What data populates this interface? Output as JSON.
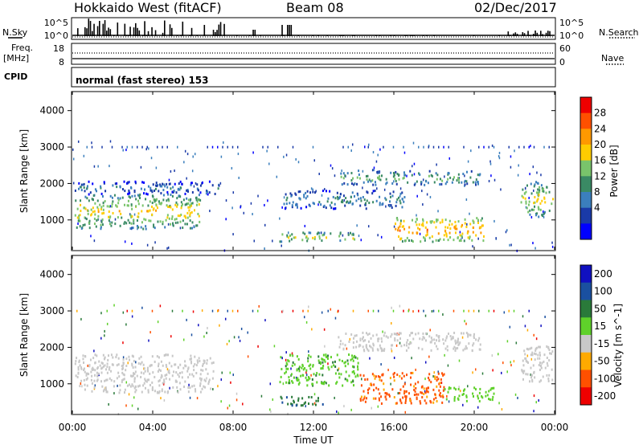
{
  "header": {
    "station": "Hokkaido West (fitACF)",
    "beam": "Beam 08",
    "date": "02/Dec/2017"
  },
  "params": {
    "nsky_label": "N.Sky",
    "nsearch_label": "N.Search",
    "freq_label": "Freq.",
    "freq_unit": "[MHz]",
    "nave_label": "Nave",
    "cpid_label": "CPID",
    "cpid_text": "normal (fast stereo) 153",
    "nsky_ticks": [
      "10^5",
      "10^0"
    ],
    "nsearch_ticks": [
      "10^5",
      "10^0"
    ],
    "freq_ticks": [
      "18",
      "8"
    ],
    "nave_ticks": [
      "60",
      "0"
    ]
  },
  "colors": {
    "power": [
      "#0000ff",
      "#1a3aa8",
      "#3b7fbd",
      "#3a8a64",
      "#79c46b",
      "#ffcc00",
      "#ff9900",
      "#ff5000",
      "#ee0000"
    ],
    "velocity": [
      "#ee0000",
      "#ff5000",
      "#ffaa00",
      "#c8c8c8",
      "#5fd12a",
      "#2a7a3a",
      "#1a50a0",
      "#1010c0"
    ]
  },
  "chart_data": [
    {
      "type": "heatmap",
      "panel": "power",
      "ylabel": "Slant Range [km]",
      "xlabel": "",
      "ylim": [
        180,
        4500
      ],
      "yticks": [
        "1000",
        "2000",
        "3000",
        "4000"
      ],
      "xlim": [
        "00:00",
        "24:00"
      ],
      "colorbar_label": "Power [dB]",
      "colorbar_ticks": [
        "4",
        "8",
        "12",
        "16",
        "20",
        "24",
        "28"
      ],
      "colorbar_range": [
        0,
        32
      ],
      "regions": [
        {
          "t": [
            0.1,
            6.4
          ],
          "r": [
            750,
            1700
          ],
          "intensity": 20
        },
        {
          "t": [
            0.1,
            7.3
          ],
          "r": [
            1700,
            2050
          ],
          "intensity": 11
        },
        {
          "t": [
            13.2,
            20.3
          ],
          "r": [
            1950,
            2350
          ],
          "intensity": 16
        },
        {
          "t": [
            10.5,
            16.5
          ],
          "r": [
            1300,
            1800
          ],
          "intensity": 13
        },
        {
          "t": [
            16.0,
            20.5
          ],
          "r": [
            400,
            1050
          ],
          "intensity": 24
        },
        {
          "t": [
            10.3,
            14.2
          ],
          "r": [
            400,
            650
          ],
          "intensity": 20
        },
        {
          "t": [
            22.3,
            23.9
          ],
          "r": [
            1050,
            2050
          ],
          "intensity": 19
        }
      ]
    },
    {
      "type": "heatmap",
      "panel": "velocity",
      "ylabel": "Slant Range [km]",
      "xlabel": "Time UT",
      "ylim": [
        180,
        4500
      ],
      "yticks": [
        "1000",
        "2000",
        "3000",
        "4000"
      ],
      "xlim": [
        "00:00",
        "24:00"
      ],
      "xticks": [
        "00:00",
        "04:00",
        "08:00",
        "12:00",
        "16:00",
        "20:00",
        "00:00"
      ],
      "colorbar_label": "Velocity [m s^-1]",
      "colorbar_ticks": [
        "-200",
        "-100",
        "-50",
        "-15",
        "15",
        "50",
        "100",
        "200"
      ],
      "regions": [
        {
          "t": [
            0.1,
            7.0
          ],
          "r": [
            750,
            1800
          ],
          "velocity": 0
        },
        {
          "t": [
            10.3,
            14.2
          ],
          "r": [
            950,
            1800
          ],
          "velocity": 40
        },
        {
          "t": [
            14.3,
            18.5
          ],
          "r": [
            450,
            1300
          ],
          "velocity": -60
        },
        {
          "t": [
            18.5,
            21.0
          ],
          "r": [
            500,
            900
          ],
          "velocity": 35
        },
        {
          "t": [
            13.2,
            20.3
          ],
          "r": [
            1900,
            2400
          ],
          "velocity": 0
        },
        {
          "t": [
            10.3,
            12.5
          ],
          "r": [
            400,
            650
          ],
          "velocity": 90
        },
        {
          "t": [
            22.3,
            23.9
          ],
          "r": [
            1050,
            2050
          ],
          "velocity": 0
        }
      ]
    }
  ]
}
